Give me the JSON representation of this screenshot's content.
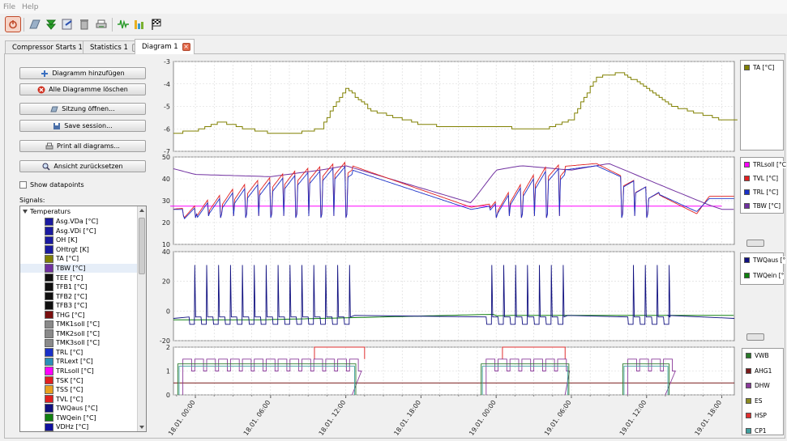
{
  "menu": {
    "file": "File",
    "help": "Help"
  },
  "toolbar": {
    "icons": [
      "power-icon",
      "open-file-icon",
      "download-icon",
      "export-icon",
      "delete-icon",
      "printer-icon",
      "signal-icon",
      "bar-chart-icon",
      "checkered-flag-icon"
    ]
  },
  "tabs": [
    {
      "label": "Compressor Starts 1"
    },
    {
      "label": "Statistics 1"
    },
    {
      "label": "Diagram 1"
    }
  ],
  "side": {
    "add_diagram": "Diagramm hinzufügen",
    "delete_all": "Alle Diagramme löschen",
    "open_session": "Sitzung öffnen...",
    "save_session": "Save session...",
    "print_all": "Print all diagrams...",
    "reset_view": "Ansicht zurücksetzen",
    "show_datapoints": "Show datapoints",
    "signals_label": "Signals:"
  },
  "tree": {
    "group": "Temperaturs",
    "items": [
      {
        "label": "Asg.VDa [°C]",
        "color": "#1a1aa0"
      },
      {
        "label": "Asg.VDi [°C]",
        "color": "#1a1aa0"
      },
      {
        "label": "OH [K]",
        "color": "#1a1aa0"
      },
      {
        "label": "OHtrgt [K]",
        "color": "#1a1aa0"
      },
      {
        "label": "TA [°C]",
        "color": "#808000"
      },
      {
        "label": "TBW [°C]",
        "color": "#7030a0"
      },
      {
        "label": "TEE [°C]",
        "color": "#101010"
      },
      {
        "label": "TFB1 [°C]",
        "color": "#101010"
      },
      {
        "label": "TFB2 [°C]",
        "color": "#101010"
      },
      {
        "label": "TFB3 [°C]",
        "color": "#101010"
      },
      {
        "label": "THG [°C]",
        "color": "#7a0f0f"
      },
      {
        "label": "TMK1soll [°C]",
        "color": "#8a8a8a"
      },
      {
        "label": "TMK2soll [°C]",
        "color": "#8a8a8a"
      },
      {
        "label": "TMK3soll [°C]",
        "color": "#8a8a8a"
      },
      {
        "label": "TRL [°C]",
        "color": "#1a30c8"
      },
      {
        "label": "TRLext [°C]",
        "color": "#2a8fb8"
      },
      {
        "label": "TRLsoll [°C]",
        "color": "#ff00ff"
      },
      {
        "label": "TSK [°C]",
        "color": "#e02020"
      },
      {
        "label": "TSS [°C]",
        "color": "#e8a020"
      },
      {
        "label": "TVL [°C]",
        "color": "#e02020"
      },
      {
        "label": "TWQaus [°C]",
        "color": "#101080"
      },
      {
        "label": "TWQein [°C]",
        "color": "#108010"
      },
      {
        "label": "VDHz [°C]",
        "color": "#1010a0"
      }
    ]
  },
  "legends": {
    "panel1": [
      {
        "label": "TA [°C]",
        "color": "#808000"
      }
    ],
    "panel2": [
      {
        "label": "TRLsoll [°C",
        "color": "#ff00ff"
      },
      {
        "label": "TVL [°C]",
        "color": "#e02020"
      },
      {
        "label": "TRL [°C]",
        "color": "#1a30c8"
      },
      {
        "label": "TBW [°C]",
        "color": "#7030a0"
      }
    ],
    "panel3": [
      {
        "label": "TWQaus [°",
        "color": "#101080"
      },
      {
        "label": "TWQein [°",
        "color": "#108010"
      }
    ],
    "panel4": [
      {
        "label": "VWB",
        "color": "#2a7a2a"
      },
      {
        "label": "AHG1",
        "color": "#7a1a1a"
      },
      {
        "label": "DHW",
        "color": "#8a3a9a"
      },
      {
        "label": "ES",
        "color": "#8a8a20"
      },
      {
        "label": "HSP",
        "color": "#e03030"
      },
      {
        "label": "CP1",
        "color": "#40a0a0"
      }
    ]
  },
  "chart_data": [
    {
      "type": "line",
      "y_ticks": [
        "-3",
        "-4",
        "-5",
        "-6",
        "-7"
      ],
      "ylim": [
        -7,
        -3
      ],
      "grid": true,
      "legend_position": "right",
      "x_ticks": [
        "18.01. 00:00",
        "18.01. 06:00",
        "18.01. 12:00",
        "18.01. 18:00",
        "19.01. 00:00",
        "19.01. 06:00",
        "19.01. 12:00",
        "19.01. 18:00"
      ],
      "series": [
        {
          "name": "TA [°C]",
          "color": "#808000",
          "x_hours": [
            -2,
            0,
            2,
            4,
            6,
            8,
            10,
            11,
            12,
            14,
            16,
            18,
            20,
            22,
            24,
            26,
            28,
            30,
            31,
            32,
            34,
            36,
            38,
            40,
            42
          ],
          "values": [
            -6.2,
            -6.1,
            -5.7,
            -6.0,
            -6.2,
            -6.2,
            -6.0,
            -5.0,
            -4.2,
            -5.2,
            -5.5,
            -5.8,
            -5.9,
            -5.9,
            -5.9,
            -6.0,
            -6.0,
            -5.6,
            -4.6,
            -3.7,
            -3.5,
            -4.2,
            -5.0,
            -5.3,
            -5.6
          ]
        }
      ]
    },
    {
      "type": "line",
      "y_ticks": [
        "50",
        "40",
        "30",
        "20",
        "10"
      ],
      "ylim": [
        10,
        50
      ],
      "grid": true,
      "legend_position": "right",
      "series": [
        {
          "name": "TRLsoll [°C",
          "color": "#ff00ff",
          "x_hours": [
            -2,
            42
          ],
          "values": [
            27.5,
            27.5
          ]
        },
        {
          "name": "TBW [°C]",
          "color": "#7030a0",
          "x_hours": [
            -2,
            0,
            6,
            10,
            12,
            22,
            24,
            26,
            30,
            33,
            38,
            41,
            42
          ],
          "values": [
            45,
            42,
            41,
            44,
            46,
            29,
            44,
            46,
            44,
            47,
            35,
            28,
            26
          ]
        },
        {
          "name": "TVL [°C]",
          "color": "#e02020",
          "x_hours": [
            -2,
            0,
            4,
            8,
            12,
            22,
            24,
            28,
            32,
            40,
            41
          ],
          "values": [
            27,
            28,
            38,
            44,
            48,
            28,
            30,
            46,
            48,
            25,
            33
          ]
        },
        {
          "name": "TRL [°C]",
          "color": "#1a30c8",
          "x_hours": [
            -2,
            0,
            4,
            8,
            12,
            22,
            24,
            28,
            32,
            40,
            41
          ],
          "values": [
            27,
            27,
            36,
            42,
            46,
            27,
            29,
            44,
            47,
            26,
            32
          ]
        }
      ]
    },
    {
      "type": "line",
      "y_ticks": [
        "40",
        "20",
        "0",
        "-20"
      ],
      "ylim": [
        -20,
        40
      ],
      "grid": true,
      "legend_position": "right",
      "series": [
        {
          "name": "TWQaus [°",
          "color": "#101080",
          "pulses_around": -5,
          "pulse_peak": 31
        },
        {
          "name": "TWQein [°",
          "color": "#108010",
          "values_range": [
            -8,
            -1
          ]
        }
      ]
    },
    {
      "type": "line",
      "y_ticks": [
        "2",
        "1",
        "0"
      ],
      "ylim": [
        0,
        2
      ],
      "grid": true,
      "legend_position": "right",
      "series": [
        {
          "name": "VWB",
          "color": "#2a7a2a"
        },
        {
          "name": "AHG1",
          "color": "#7a1a1a"
        },
        {
          "name": "DHW",
          "color": "#8a3a9a"
        },
        {
          "name": "ES",
          "color": "#8a8a20"
        },
        {
          "name": "HSP",
          "color": "#e03030"
        },
        {
          "name": "CP1",
          "color": "#40a0a0"
        }
      ]
    }
  ]
}
